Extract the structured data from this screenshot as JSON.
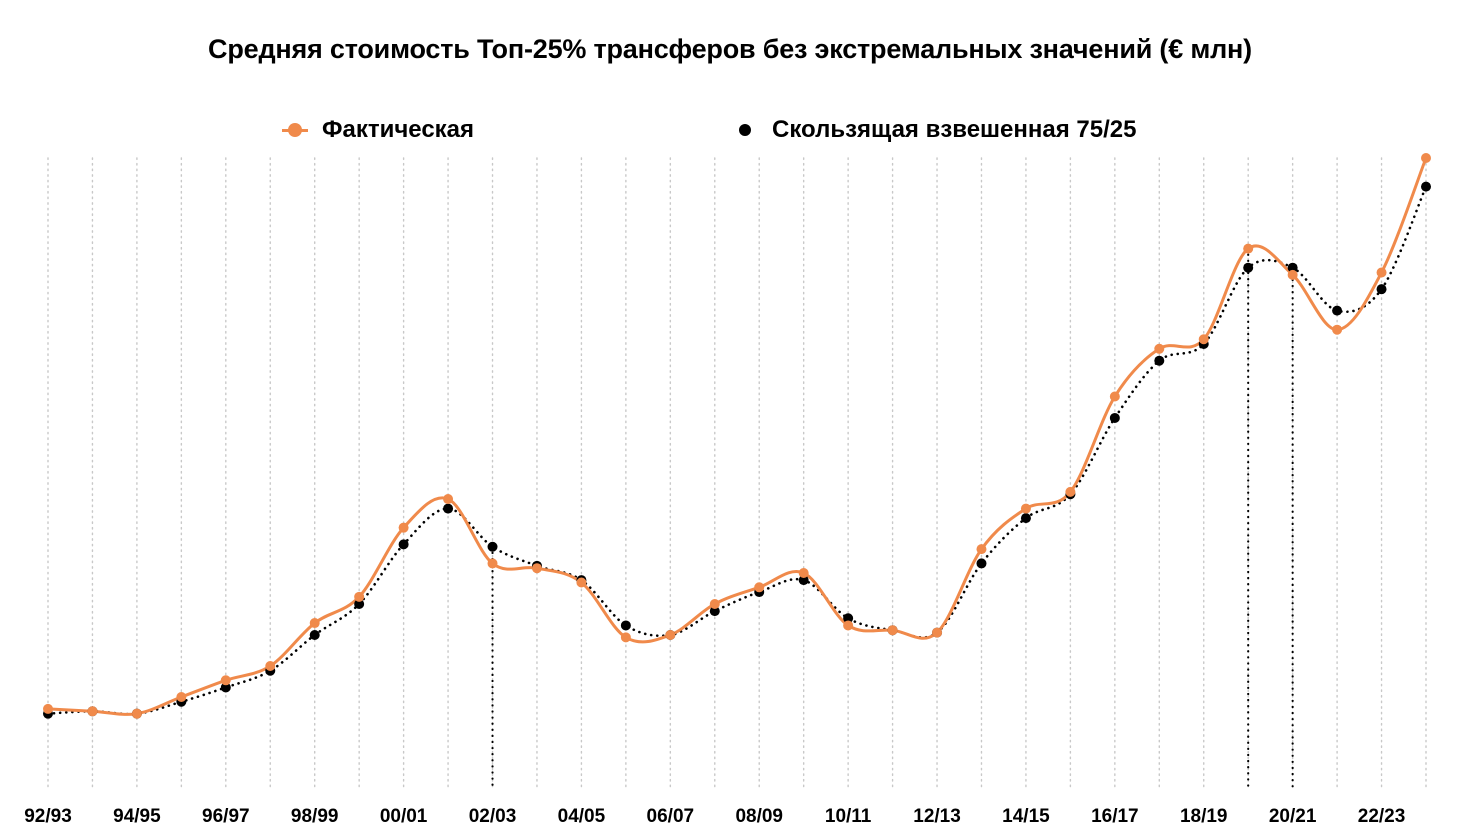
{
  "chart_data": {
    "type": "line",
    "title": "Средняя стоимость Топ-25% трансферов без экстремальных значений (€ млн)",
    "xlabel": "",
    "ylabel": "",
    "categories": [
      "92/93",
      "93/94",
      "94/95",
      "95/96",
      "96/97",
      "97/98",
      "98/99",
      "99/00",
      "00/01",
      "01/02",
      "02/03",
      "03/04",
      "04/05",
      "05/06",
      "06/07",
      "07/08",
      "08/09",
      "09/10",
      "10/11",
      "11/12",
      "12/13",
      "13/14",
      "14/15",
      "15/16",
      "16/17",
      "17/18",
      "18/19",
      "19/20",
      "20/21",
      "21/22",
      "22/23",
      "23/24"
    ],
    "tick_labels": [
      "92/93",
      "94/95",
      "96/97",
      "98/99",
      "00/01",
      "02/03",
      "04/05",
      "06/07",
      "08/09",
      "10/11",
      "12/13",
      "14/15",
      "16/17",
      "18/19",
      "20/21",
      "22/23"
    ],
    "series": [
      {
        "name": "Фактическая",
        "color": "#f08a4b",
        "style": "smooth-line-with-markers",
        "values": [
          0.3,
          0.2,
          0.1,
          0.8,
          1.5,
          2.1,
          3.9,
          5.0,
          7.9,
          9.1,
          6.4,
          6.2,
          5.6,
          3.3,
          3.4,
          4.7,
          5.4,
          6.0,
          3.8,
          3.6,
          3.5,
          7.0,
          8.7,
          9.4,
          13.4,
          15.4,
          15.8,
          19.6,
          18.5,
          16.2,
          18.6,
          23.4
        ]
      },
      {
        "name": "Скользящая взвешенная 75/25",
        "color": "#000000",
        "style": "dotted-line-with-markers",
        "values": [
          0.1,
          0.2,
          0.1,
          0.6,
          1.2,
          1.9,
          3.4,
          4.7,
          7.2,
          8.7,
          7.1,
          6.3,
          5.7,
          3.8,
          3.4,
          4.4,
          5.2,
          5.7,
          4.1,
          3.6,
          3.5,
          6.4,
          8.3,
          9.3,
          12.5,
          14.9,
          15.6,
          18.8,
          18.8,
          17.0,
          17.9,
          22.2
        ]
      }
    ],
    "ylim": [
      -3.1,
      23.4
    ],
    "y_axis_labels_shown": false,
    "grid": "vertical-dotted",
    "legend_position": "top",
    "drop_lines_at": [
      "02/03",
      "19/20",
      "20/21"
    ]
  }
}
